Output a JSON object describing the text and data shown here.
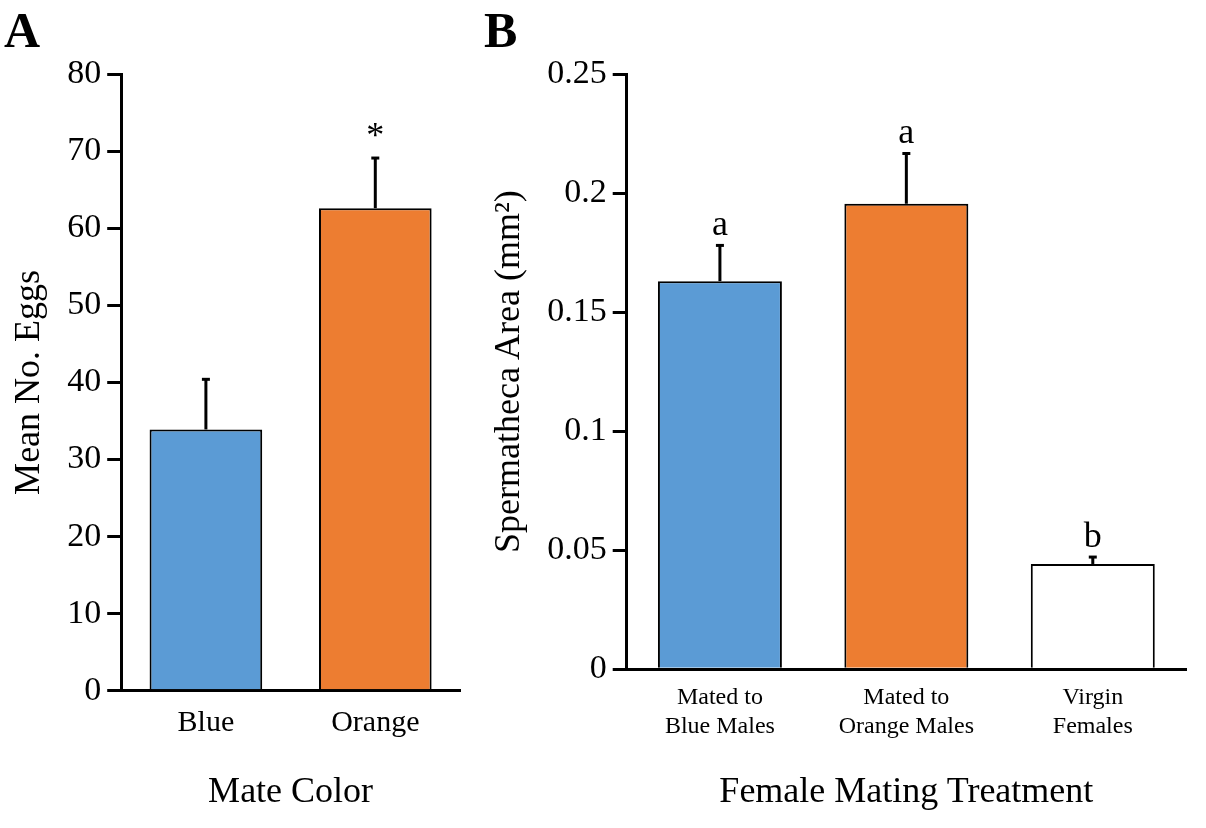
{
  "chart_data": [
    {
      "type": "bar",
      "title": "A",
      "xlabel": "Mate Color",
      "ylabel": "Mean No. Eggs",
      "categories": [
        "Blue",
        "Orange"
      ],
      "values": [
        33.9,
        62.6
      ],
      "colors": [
        "#5b9bd5",
        "#ed7d31"
      ],
      "errors": [
        [
          33.9,
          40.4
        ],
        [
          62.6,
          69.1
        ]
      ],
      "value_labels": [
        null,
        "*"
      ],
      "ylim": [
        0,
        80
      ],
      "yticks": [
        0,
        10,
        20,
        30,
        40,
        50,
        60,
        70,
        80
      ],
      "grid": false,
      "legend": false
    },
    {
      "type": "bar",
      "title": "B",
      "xlabel": "Female Mating Treatment",
      "ylabel": "Spermatheca Area (mm²)",
      "categories": [
        "Mated to\nBlue Males",
        "Mated to\nOrange Males",
        "Virgin\nFemales"
      ],
      "values": [
        0.163,
        0.1955,
        0.0442
      ],
      "colors": [
        "#5b9bd5",
        "#ed7d31",
        "#ffffff"
      ],
      "errors": [
        [
          0.163,
          0.178
        ],
        [
          0.1955,
          0.2166
        ],
        [
          0.0442,
          0.0471
        ]
      ],
      "value_labels": [
        "a",
        "a",
        "b"
      ],
      "ylim": [
        0,
        0.25
      ],
      "yticks": [
        0,
        0.05,
        0.1,
        0.15,
        0.2,
        0.25
      ],
      "grid": false,
      "legend": false
    }
  ]
}
